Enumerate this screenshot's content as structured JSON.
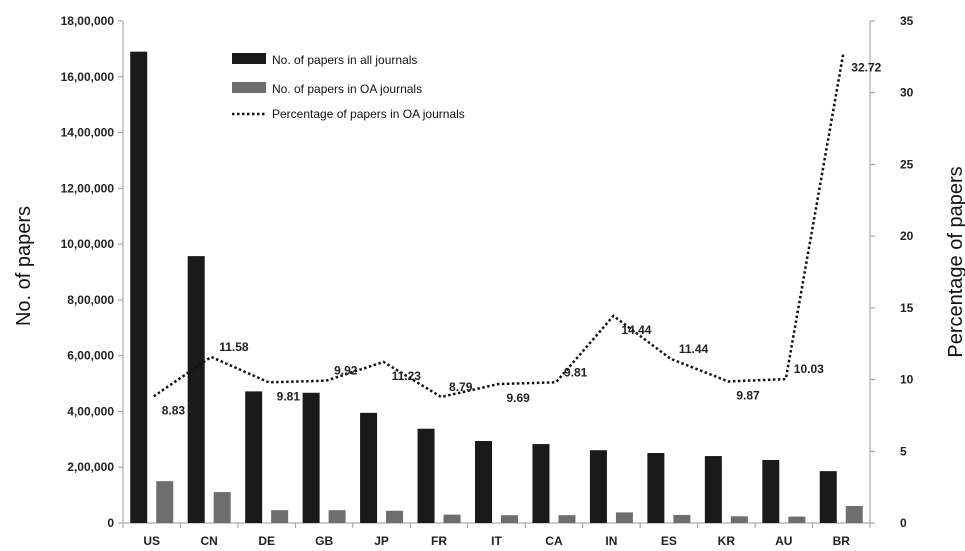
{
  "chart_data": {
    "type": "bar",
    "title": "",
    "categories": [
      "US",
      "CN",
      "DE",
      "GB",
      "JP",
      "FR",
      "IT",
      "CA",
      "IN",
      "ES",
      "KR",
      "AU",
      "BR"
    ],
    "series": [
      {
        "name": "No. of papers in all journals",
        "kind": "bar",
        "axis": "left",
        "color": "#1a1a1a",
        "values": [
          1690000,
          957000,
          472000,
          467000,
          395000,
          338000,
          294000,
          283000,
          261000,
          251000,
          240000,
          226000,
          186000
        ]
      },
      {
        "name": "No. of papers in OA journals",
        "kind": "bar",
        "axis": "left",
        "color": "#6e6e6e",
        "values": [
          150000,
          111000,
          46000,
          46000,
          44000,
          30000,
          28000,
          28000,
          38000,
          29000,
          24000,
          23000,
          61000
        ]
      },
      {
        "name": "Percentage of papers in OA journals",
        "kind": "line",
        "style": "dotted",
        "axis": "right",
        "color": "#111111",
        "values": [
          8.83,
          11.58,
          9.81,
          9.92,
          11.23,
          8.79,
          9.69,
          9.81,
          14.44,
          11.44,
          9.87,
          10.03,
          32.72
        ],
        "data_labels": [
          "8.83",
          "11.58",
          "9.81",
          "9.92",
          "11.23",
          "8.79",
          "9.69",
          "9.81",
          "14.44",
          "11.44",
          "9.87",
          "10.03",
          "32.72"
        ]
      }
    ],
    "ylabel": "No. of papers",
    "y2label": "Percentage  of papers",
    "ylim": [
      0,
      1800000
    ],
    "y2lim": [
      0,
      35
    ],
    "y_ticks": [
      "0",
      "2,00,000",
      "4,00,000",
      "6,00,000",
      "8,00,000",
      "10,00,000",
      "12,00,000",
      "14,00,000",
      "16,00,000",
      "18,00,000"
    ],
    "y_tick_values": [
      0,
      200000,
      400000,
      600000,
      800000,
      1000000,
      1200000,
      1400000,
      1600000,
      1800000
    ],
    "y2_ticks": [
      "0",
      "5",
      "10",
      "15",
      "20",
      "25",
      "30",
      "35"
    ],
    "y2_tick_values": [
      0,
      5,
      10,
      15,
      20,
      25,
      30,
      35
    ],
    "grid": false,
    "legend_position": "top-left"
  }
}
